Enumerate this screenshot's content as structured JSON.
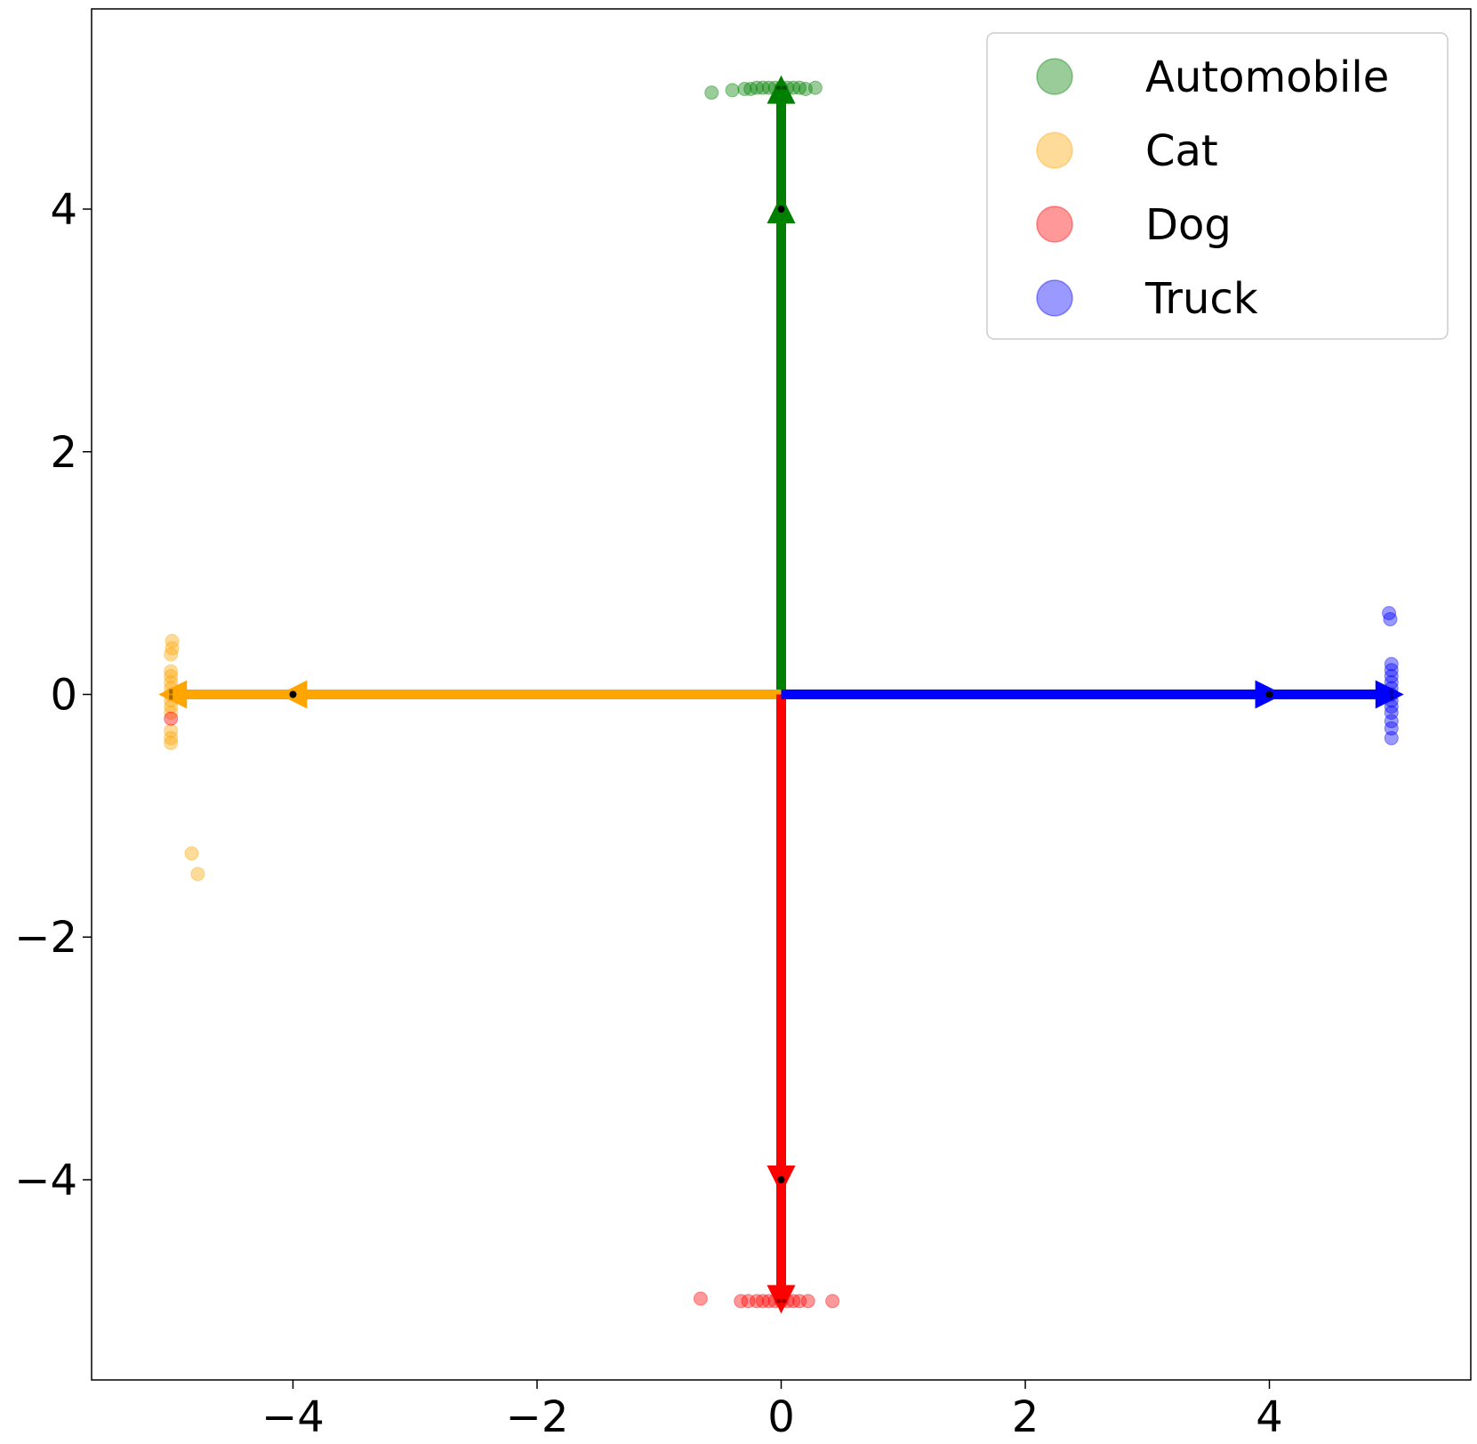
{
  "chart_data": {
    "type": "scatter",
    "xlim": [
      -5.65,
      5.65
    ],
    "ylim": [
      -5.65,
      5.65
    ],
    "xticks": [
      -4,
      -2,
      0,
      2,
      4
    ],
    "yticks": [
      -4,
      -2,
      0,
      2,
      4
    ],
    "xtick_labels": [
      "−4",
      "−2",
      "0",
      "2",
      "4"
    ],
    "ytick_labels": [
      "−4",
      "−2",
      "0",
      "2",
      "4"
    ],
    "grid": false,
    "legend_position": "top-right",
    "arrows": [
      {
        "series": "Automobile",
        "color": "#008000",
        "from": [
          0,
          0
        ],
        "mid": [
          0,
          4
        ],
        "to": [
          0,
          5
        ]
      },
      {
        "series": "Cat",
        "color": "#FFA500",
        "from": [
          0,
          0
        ],
        "mid": [
          -4,
          0
        ],
        "to": [
          -5,
          0
        ]
      },
      {
        "series": "Dog",
        "color": "#FF0000",
        "from": [
          0,
          0
        ],
        "mid": [
          0,
          -4
        ],
        "to": [
          0,
          -5
        ]
      },
      {
        "series": "Truck",
        "color": "#0000FF",
        "from": [
          0,
          0
        ],
        "mid": [
          4,
          0
        ],
        "to": [
          5,
          0
        ]
      }
    ],
    "series": [
      {
        "name": "Automobile",
        "color": "#008000",
        "points": [
          [
            -0.57,
            4.96
          ],
          [
            -0.4,
            4.98
          ],
          [
            -0.3,
            4.99
          ],
          [
            -0.25,
            4.99
          ],
          [
            -0.2,
            5.0
          ],
          [
            -0.15,
            5.0
          ],
          [
            -0.1,
            5.0
          ],
          [
            -0.05,
            5.0
          ],
          [
            0.0,
            5.0
          ],
          [
            0.05,
            5.0
          ],
          [
            0.1,
            5.0
          ],
          [
            0.15,
            5.0
          ],
          [
            0.2,
            4.99
          ],
          [
            0.28,
            5.0
          ]
        ]
      },
      {
        "name": "Cat",
        "color": "#FFA500",
        "points": [
          [
            -4.99,
            0.44
          ],
          [
            -4.99,
            0.38
          ],
          [
            -5.0,
            0.33
          ],
          [
            -5.0,
            0.19
          ],
          [
            -5.0,
            0.15
          ],
          [
            -5.0,
            0.1
          ],
          [
            -5.0,
            0.05
          ],
          [
            -5.0,
            0.0
          ],
          [
            -5.0,
            -0.05
          ],
          [
            -5.0,
            -0.1
          ],
          [
            -5.0,
            -0.15
          ],
          [
            -5.0,
            -0.3
          ],
          [
            -5.0,
            -0.36
          ],
          [
            -5.0,
            -0.4
          ],
          [
            -4.83,
            -1.31
          ],
          [
            -4.78,
            -1.48
          ]
        ]
      },
      {
        "name": "Dog",
        "color": "#FF0000",
        "points": [
          [
            -0.66,
            -4.98
          ],
          [
            -0.33,
            -5.0
          ],
          [
            -0.27,
            -5.0
          ],
          [
            -0.2,
            -5.0
          ],
          [
            -0.15,
            -5.0
          ],
          [
            -0.1,
            -5.0
          ],
          [
            -0.05,
            -5.0
          ],
          [
            0.0,
            -5.0
          ],
          [
            0.05,
            -5.0
          ],
          [
            0.1,
            -5.0
          ],
          [
            0.15,
            -5.0
          ],
          [
            0.22,
            -5.0
          ],
          [
            0.42,
            -5.0
          ],
          [
            -5.0,
            -0.2
          ]
        ]
      },
      {
        "name": "Truck",
        "color": "#0000FF",
        "points": [
          [
            4.98,
            0.67
          ],
          [
            4.99,
            0.62
          ],
          [
            5.0,
            0.25
          ],
          [
            5.0,
            0.2
          ],
          [
            5.0,
            0.15
          ],
          [
            5.0,
            0.1
          ],
          [
            5.0,
            0.05
          ],
          [
            5.0,
            0.0
          ],
          [
            5.0,
            -0.05
          ],
          [
            5.0,
            -0.1
          ],
          [
            5.0,
            -0.15
          ],
          [
            5.0,
            -0.22
          ],
          [
            5.0,
            -0.28
          ],
          [
            5.0,
            -0.36
          ]
        ]
      }
    ],
    "legend": [
      {
        "label": "Automobile",
        "color": "#008000"
      },
      {
        "label": "Cat",
        "color": "#FFA500"
      },
      {
        "label": "Dog",
        "color": "#FF0000"
      },
      {
        "label": "Truck",
        "color": "#0000FF"
      }
    ]
  }
}
